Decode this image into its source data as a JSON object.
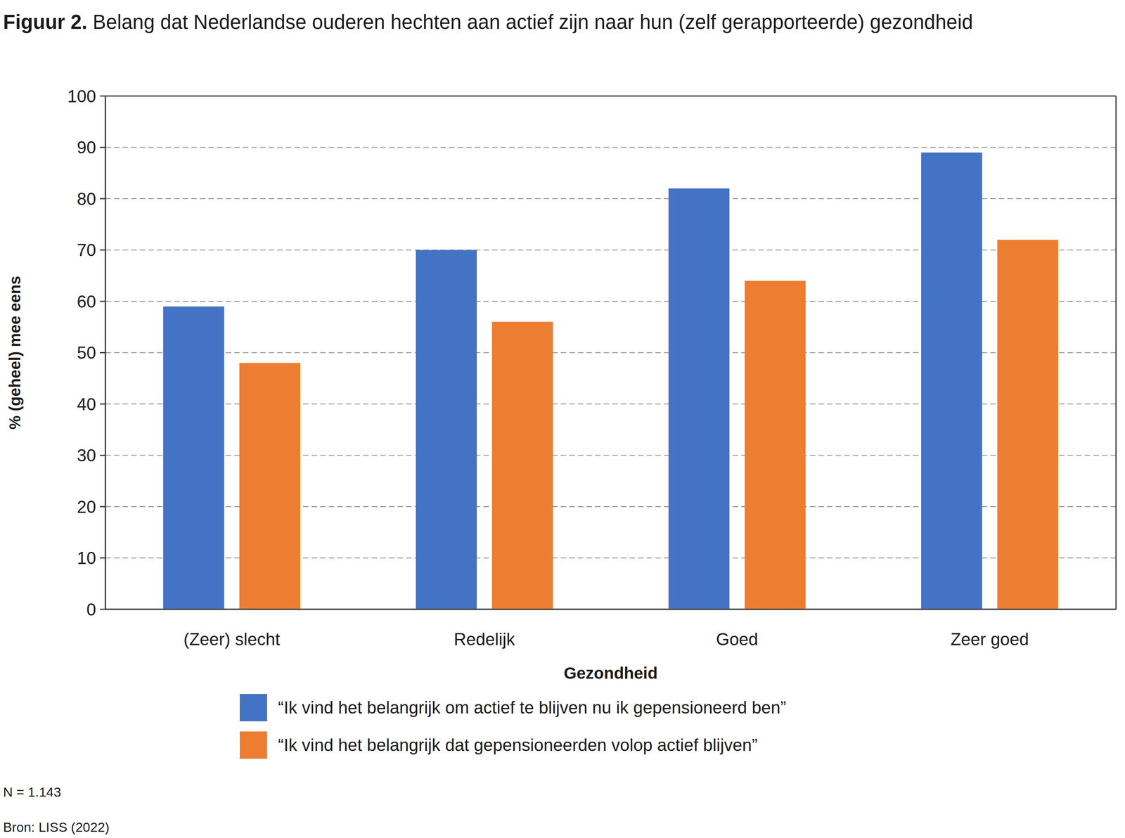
{
  "chart_data": {
    "type": "bar",
    "title": "Figuur 2. Belang dat Nederlandse ouderen hechten aan actief zijn naar hun (zelf gerapporteerde) gezondheid",
    "x_label": "Gezondheid",
    "y_label": "% (geheel) mee eens",
    "categories": [
      "(Zeer) slecht",
      "Redelijk",
      "Goed",
      "Zeer goed"
    ],
    "series": [
      {
        "name": "“Ik vind het belangrijk om actief te blijven nu ik gepensioneerd ben”",
        "color": "#4472c4",
        "values": [
          59,
          70,
          82,
          89
        ]
      },
      {
        "name": "“Ik vind het belangrijk dat gepensioneerden volop actief blijven”",
        "color": "#ed7d31",
        "values": [
          48,
          56,
          64,
          72
        ]
      }
    ],
    "ylim": [
      0,
      100
    ],
    "yticks": [
      0,
      10,
      20,
      30,
      40,
      50,
      60,
      70,
      80,
      90,
      100
    ],
    "grid": true,
    "legend": "bottom",
    "notes": [
      "N = 1.143",
      "Bron: LISS (2022)"
    ]
  }
}
